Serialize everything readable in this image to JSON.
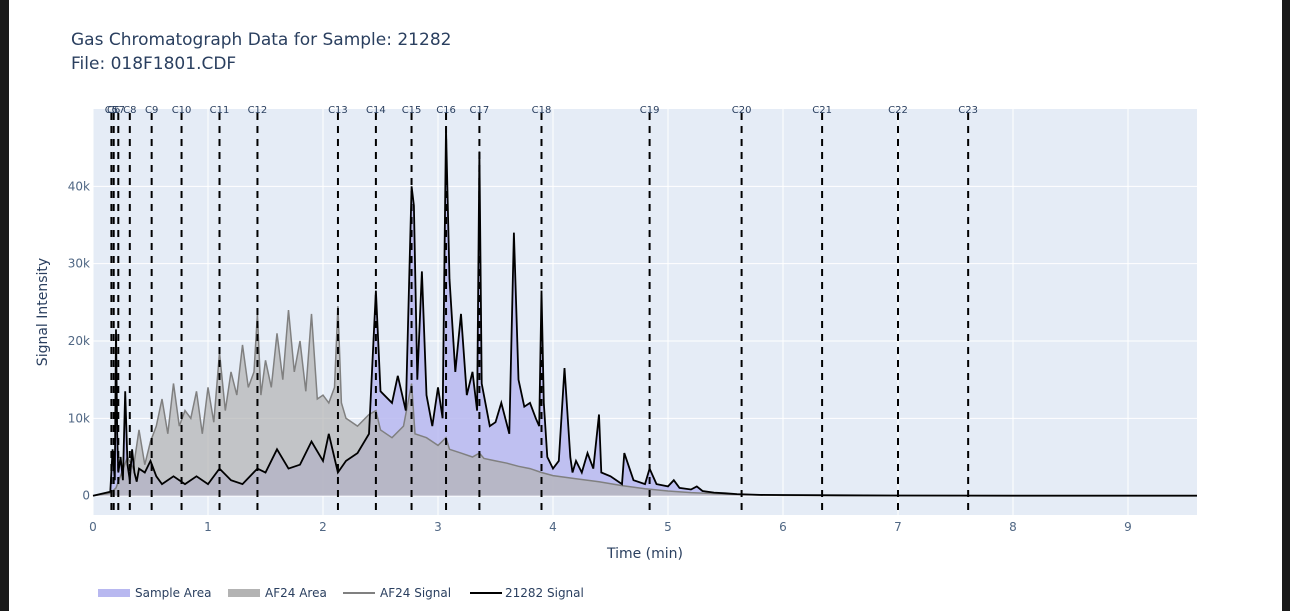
{
  "title": "Gas Chromatograph Data for Sample: 21282",
  "subtitle": "File: 018F1801.CDF",
  "chart_data": {
    "type": "area",
    "xlabel": "Time (min)",
    "ylabel": "Signal Intensity",
    "xlim": [
      0,
      9.6
    ],
    "ylim": [
      -2500,
      50000
    ],
    "x_ticks": [
      0,
      1,
      2,
      3,
      4,
      5,
      6,
      7,
      8,
      9
    ],
    "x_tick_labels": [
      "0",
      "1",
      "2",
      "3",
      "4",
      "5",
      "6",
      "7",
      "8",
      "9"
    ],
    "y_ticks": [
      0,
      10000,
      20000,
      30000,
      40000
    ],
    "y_tick_labels": [
      "0",
      "10k",
      "20k",
      "30k",
      "40k"
    ],
    "grid": true,
    "legend_position": "bottom",
    "colors": {
      "sample_area": "#b8b8f0",
      "af24_area": "#b3b3b3",
      "af24_signal": "#808080",
      "sample_signal": "#000000",
      "plot_bg": "#e5ecf6",
      "grid": "#ffffff"
    },
    "markers": [
      {
        "label": "C5",
        "x": 0.16
      },
      {
        "label": "C6",
        "x": 0.18
      },
      {
        "label": "C7",
        "x": 0.22
      },
      {
        "label": "C8",
        "x": 0.32
      },
      {
        "label": "C9",
        "x": 0.51
      },
      {
        "label": "C10",
        "x": 0.77
      },
      {
        "label": "C11",
        "x": 1.1
      },
      {
        "label": "C12",
        "x": 1.43
      },
      {
        "label": "C13",
        "x": 2.13
      },
      {
        "label": "C14",
        "x": 2.46
      },
      {
        "label": "C15",
        "x": 2.77
      },
      {
        "label": "C16",
        "x": 3.07
      },
      {
        "label": "C17",
        "x": 3.36
      },
      {
        "label": "C18",
        "x": 3.9
      },
      {
        "label": "C19",
        "x": 4.84
      },
      {
        "label": "C20",
        "x": 5.64
      },
      {
        "label": "C21",
        "x": 6.34
      },
      {
        "label": "C22",
        "x": 7.0
      },
      {
        "label": "C23",
        "x": 7.61
      }
    ],
    "series": [
      {
        "name": "21282 Signal",
        "x": [
          0.0,
          0.15,
          0.17,
          0.19,
          0.2,
          0.21,
          0.22,
          0.24,
          0.26,
          0.28,
          0.3,
          0.32,
          0.34,
          0.36,
          0.38,
          0.4,
          0.45,
          0.5,
          0.55,
          0.6,
          0.7,
          0.8,
          0.9,
          1.0,
          1.1,
          1.2,
          1.3,
          1.43,
          1.5,
          1.6,
          1.7,
          1.8,
          1.9,
          2.0,
          2.05,
          2.13,
          2.2,
          2.3,
          2.4,
          2.46,
          2.5,
          2.6,
          2.65,
          2.72,
          2.77,
          2.79,
          2.82,
          2.86,
          2.9,
          2.95,
          3.0,
          3.04,
          3.07,
          3.1,
          3.15,
          3.2,
          3.25,
          3.3,
          3.34,
          3.36,
          3.38,
          3.45,
          3.5,
          3.55,
          3.62,
          3.66,
          3.7,
          3.75,
          3.8,
          3.85,
          3.88,
          3.9,
          3.92,
          3.95,
          4.0,
          4.05,
          4.1,
          4.15,
          4.17,
          4.2,
          4.25,
          4.3,
          4.35,
          4.4,
          4.42,
          4.5,
          4.6,
          4.62,
          4.7,
          4.8,
          4.84,
          4.9,
          5.0,
          5.05,
          5.1,
          5.2,
          5.25,
          5.3,
          5.4,
          5.5,
          5.6,
          5.7,
          5.8,
          6.0,
          6.5,
          7.0,
          8.0,
          9.0,
          9.6
        ],
        "values": [
          0,
          500,
          6000,
          2000,
          21500,
          8000,
          3000,
          5000,
          2000,
          13500,
          4000,
          2000,
          6000,
          3000,
          1800,
          3500,
          3000,
          4500,
          2500,
          1500,
          2500,
          1500,
          2500,
          1500,
          3500,
          2000,
          1500,
          3500,
          3000,
          6000,
          3500,
          4000,
          7000,
          4500,
          8000,
          3000,
          4500,
          5500,
          8000,
          26500,
          13500,
          12000,
          15500,
          11000,
          40000,
          37500,
          15000,
          29000,
          13000,
          9000,
          14000,
          10000,
          47500,
          28000,
          16000,
          23500,
          13000,
          16000,
          11000,
          44500,
          14500,
          9000,
          9500,
          12000,
          8000,
          34000,
          15000,
          11500,
          12000,
          10000,
          9000,
          26500,
          12000,
          5000,
          3500,
          4500,
          16500,
          5000,
          3000,
          4500,
          3000,
          5500,
          3500,
          10500,
          3000,
          2500,
          1500,
          5500,
          2000,
          1500,
          3500,
          1500,
          1200,
          2000,
          1000,
          800,
          1200,
          600,
          400,
          300,
          200,
          150,
          100,
          80,
          50,
          20,
          0,
          0,
          0
        ]
      },
      {
        "name": "AF24 Signal",
        "x": [
          0.0,
          0.15,
          0.2,
          0.25,
          0.3,
          0.35,
          0.4,
          0.45,
          0.5,
          0.55,
          0.6,
          0.65,
          0.7,
          0.75,
          0.8,
          0.85,
          0.9,
          0.95,
          1.0,
          1.05,
          1.1,
          1.15,
          1.2,
          1.25,
          1.3,
          1.35,
          1.4,
          1.43,
          1.46,
          1.5,
          1.55,
          1.6,
          1.65,
          1.7,
          1.75,
          1.8,
          1.85,
          1.9,
          1.95,
          2.0,
          2.05,
          2.1,
          2.13,
          2.16,
          2.2,
          2.3,
          2.4,
          2.46,
          2.5,
          2.6,
          2.7,
          2.77,
          2.8,
          2.9,
          3.0,
          3.07,
          3.1,
          3.2,
          3.3,
          3.36,
          3.4,
          3.5,
          3.6,
          3.7,
          3.8,
          3.9,
          4.0,
          4.2,
          4.4,
          4.6,
          4.8,
          5.0,
          5.2,
          5.5,
          5.8,
          6.0,
          7.0,
          9.6
        ],
        "values": [
          0,
          300,
          1000,
          3000,
          5000,
          3500,
          8500,
          4000,
          7000,
          9000,
          12500,
          8000,
          14500,
          9000,
          11000,
          10000,
          13500,
          8000,
          14000,
          9500,
          18500,
          11000,
          16000,
          13000,
          19500,
          14000,
          16000,
          23500,
          13000,
          17500,
          14000,
          21000,
          15000,
          24000,
          16000,
          20000,
          13500,
          23500,
          12500,
          13000,
          12000,
          14000,
          24500,
          12000,
          10000,
          9000,
          10500,
          11000,
          8500,
          7500,
          9000,
          14500,
          8000,
          7500,
          6500,
          7500,
          6000,
          5500,
          5000,
          5500,
          4800,
          4500,
          4200,
          3800,
          3500,
          3000,
          2600,
          2200,
          1800,
          1300,
          900,
          600,
          400,
          200,
          80,
          30,
          0,
          0
        ]
      }
    ],
    "legend": [
      "Sample Area",
      "AF24 Area",
      "AF24 Signal",
      "21282 Signal"
    ]
  }
}
